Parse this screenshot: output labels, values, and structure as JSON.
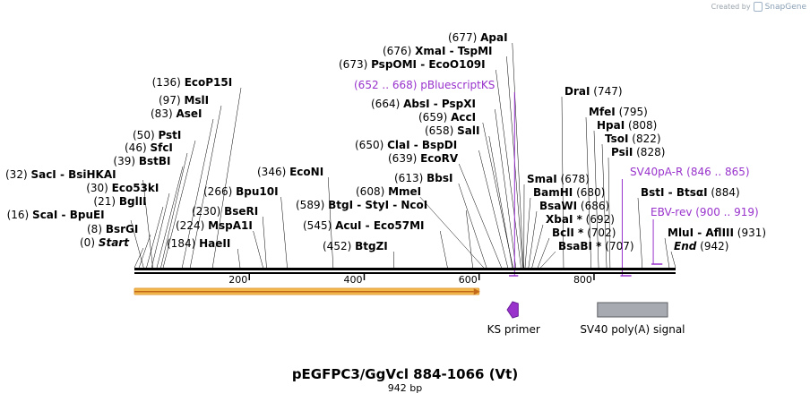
{
  "credit": {
    "created_by": "Created by",
    "brand": "SnapGene"
  },
  "title": "pEGFPC3/GgVcl 884-1066 (Vt)",
  "length_label": "942 bp",
  "total_bp": 942,
  "ticks": [
    {
      "bp": 200,
      "label": "200"
    },
    {
      "bp": 400,
      "label": "400"
    },
    {
      "bp": 600,
      "label": "600"
    },
    {
      "bp": 800,
      "label": "800"
    }
  ],
  "left_sites": [
    {
      "pos": "(0)",
      "name": "Start",
      "bp": 0,
      "italic": true
    },
    {
      "pos": "(8)",
      "name": "BsrGI",
      "bp": 8
    },
    {
      "pos": "(16)",
      "name": "ScaI  - BpuEI",
      "bp": 16
    },
    {
      "pos": "(21)",
      "name": "BglII",
      "bp": 21
    },
    {
      "pos": "(30)",
      "name": "Eco53kI",
      "bp": 30
    },
    {
      "pos": "(32)",
      "name": "SacI  - BsiHKAI",
      "bp": 32
    },
    {
      "pos": "(39)",
      "name": "BstBI",
      "bp": 39
    },
    {
      "pos": "(46)",
      "name": "SfcI",
      "bp": 46
    },
    {
      "pos": "(50)",
      "name": "PstI",
      "bp": 50
    },
    {
      "pos": "(83)",
      "name": "AseI",
      "bp": 83
    },
    {
      "pos": "(97)",
      "name": "MslI",
      "bp": 97
    },
    {
      "pos": "(136)",
      "name": "EcoP15I",
      "bp": 136
    }
  ],
  "mid_sites": [
    {
      "pos": "(184)",
      "name": "HaeII",
      "bp": 184
    },
    {
      "pos": "(224)",
      "name": "MspA1I",
      "bp": 224
    },
    {
      "pos": "(230)",
      "name": "BseRI",
      "bp": 230
    },
    {
      "pos": "(266)",
      "name": "Bpu10I",
      "bp": 266
    },
    {
      "pos": "(346)",
      "name": "EcoNI",
      "bp": 346
    },
    {
      "pos": "(452)",
      "name": "BtgZI",
      "bp": 452
    },
    {
      "pos": "(545)",
      "name": "AcuI  - Eco57MI",
      "bp": 545
    },
    {
      "pos": "(589)",
      "name": "BtgI  - StyI  - NcoI",
      "bp": 589
    },
    {
      "pos": "(608)",
      "name": "MmeI",
      "bp": 608
    },
    {
      "pos": "(613)",
      "name": "BbsI",
      "bp": 613
    },
    {
      "pos": "(639)",
      "name": "EcoRV",
      "bp": 639
    },
    {
      "pos": "(650)",
      "name": "ClaI  - BspDI",
      "bp": 650
    },
    {
      "pos": "(658)",
      "name": "SalI",
      "bp": 658
    },
    {
      "pos": "(659)",
      "name": "AccI",
      "bp": 659
    },
    {
      "pos": "(664)",
      "name": "AbsI  - PspXI",
      "bp": 664
    },
    {
      "pos": "(673)",
      "name": "PspOMI  - EcoO109I",
      "bp": 673
    },
    {
      "pos": "(676)",
      "name": "XmaI  - TspMI",
      "bp": 676
    },
    {
      "pos": "(677)",
      "name": "ApaI",
      "bp": 677
    }
  ],
  "right_sites": [
    {
      "pos": "(678)",
      "name": "SmaI",
      "bp": 678
    },
    {
      "pos": "(680)",
      "name": "BamHI",
      "bp": 680
    },
    {
      "pos": "(686)",
      "name": "BsaWI",
      "bp": 686
    },
    {
      "pos": "(692)",
      "name": "XbaI *",
      "bp": 692
    },
    {
      "pos": "(702)",
      "name": "BclI *",
      "bp": 702
    },
    {
      "pos": "(707)",
      "name": "BsaBI *",
      "bp": 707
    },
    {
      "pos": "(747)",
      "name": "DraI",
      "bp": 747
    },
    {
      "pos": "(795)",
      "name": "MfeI",
      "bp": 795
    },
    {
      "pos": "(808)",
      "name": "HpaI",
      "bp": 808
    },
    {
      "pos": "(822)",
      "name": "TsoI",
      "bp": 822
    },
    {
      "pos": "(828)",
      "name": "PsiI",
      "bp": 828
    },
    {
      "pos": "(884)",
      "name": "BstI  - BtsαI",
      "bp": 884
    },
    {
      "pos": "(931)",
      "name": "MluI  - AflIII",
      "bp": 931
    },
    {
      "pos": "(942)",
      "name": "End",
      "bp": 942,
      "italic": true
    }
  ],
  "primers": [
    {
      "name": "pBluescriptKS",
      "range": "(652 .. 668)"
    },
    {
      "name": "SV40pA-R",
      "range": "(846 .. 865)"
    },
    {
      "name": "EBV-rev",
      "range": "(900 .. 919)"
    }
  ],
  "features": [
    {
      "name": "KS primer",
      "start": 652,
      "end": 668,
      "color": "#9933cc"
    },
    {
      "name": "SV40 poly(A) signal",
      "start": 806,
      "end": 928,
      "color": "#a7aab0"
    }
  ],
  "orf": {
    "start": 1,
    "end": 600,
    "color": "#f4b84a"
  }
}
